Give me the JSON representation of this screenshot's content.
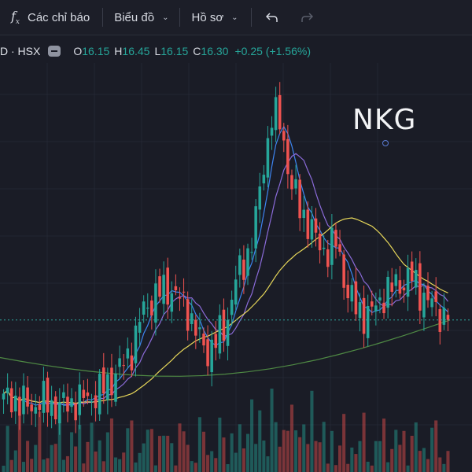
{
  "toolbar": {
    "indicators_label": "Các chỉ báo",
    "chart_menu_label": "Biểu đồ",
    "profile_menu_label": "Hồ sơ",
    "fx_icon": "function-icon",
    "undo_icon": "undo-icon",
    "redo_icon": "redo-icon"
  },
  "legend": {
    "symbol": "D · HSX",
    "o_label": "O",
    "o_value": "16.15",
    "h_label": "H",
    "h_value": "16.45",
    "l_label": "L",
    "l_value": "16.15",
    "c_label": "C",
    "c_value": "16.30",
    "change": "+0.25 (+1.56%)"
  },
  "watermark": "NKG",
  "colors": {
    "up": "#26a69a",
    "down": "#ef5350",
    "ma_fast": "#3d85f0",
    "ma_mid": "#8b6bd9",
    "ma_slow": "#e8d85a",
    "ma_long": "#4f8a44",
    "background": "#1a1c26"
  },
  "chart_data": {
    "type": "candlestick",
    "y_range": [
      12.4,
      25.2
    ],
    "last_price_line": 16.3,
    "series": [
      {
        "name": "",
        "values": [
          13.5,
          13.6,
          13.4,
          13.3,
          13.5,
          13.4,
          13.3,
          13.4,
          13.5,
          13.6,
          13.7,
          14.0,
          14.4,
          14.8,
          15.4,
          16.6,
          17.0,
          17.3,
          17.4,
          17.0,
          16.6,
          15.7,
          15.2,
          15.6,
          16.1,
          17.6,
          18.3,
          19.2,
          21.5,
          23.4,
          23.1,
          21.0,
          20.2,
          19.6,
          18.9,
          18.7,
          19.0,
          17.4,
          16.7,
          16.5,
          16.6,
          17.2,
          17.4,
          17.6,
          17.8,
          17.3,
          16.9,
          16.6,
          16.3
        ]
      }
    ]
  }
}
